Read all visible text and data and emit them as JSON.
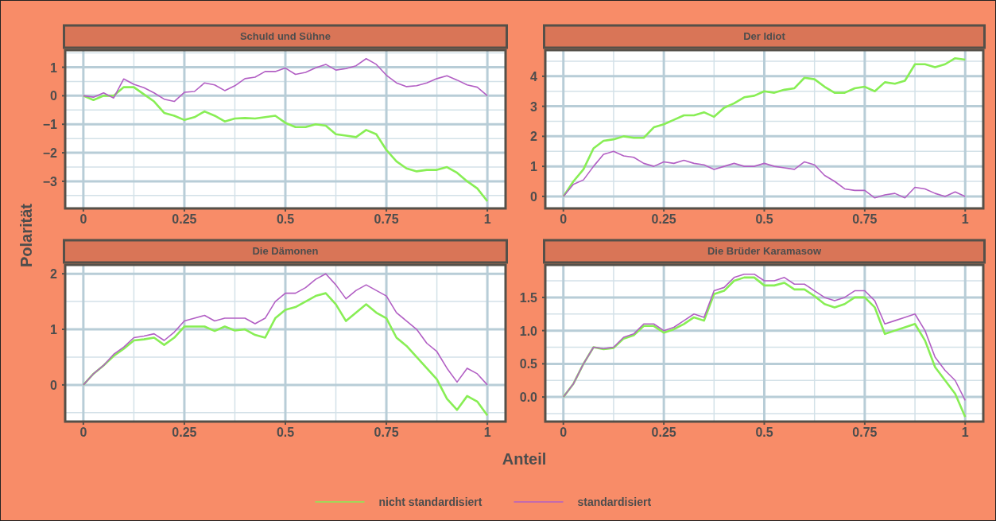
{
  "chart_data": [
    {
      "type": "line",
      "title": "Schuld und Sühne",
      "ylabel": "Polarität",
      "legend": "bottom",
      "x": [
        0,
        0.025,
        0.05,
        0.075,
        0.1,
        0.125,
        0.15,
        0.175,
        0.2,
        0.225,
        0.25,
        0.275,
        0.3,
        0.325,
        0.35,
        0.375,
        0.4,
        0.425,
        0.45,
        0.475,
        0.5,
        0.525,
        0.55,
        0.575,
        0.6,
        0.625,
        0.65,
        0.675,
        0.7,
        0.725,
        0.75,
        0.775,
        0.8,
        0.825,
        0.85,
        0.875,
        0.9,
        0.925,
        0.95,
        0.975,
        1
      ],
      "xlim": [
        -0.045,
        1.045
      ],
      "xticks": [
        0,
        0.25,
        0.5,
        0.75,
        1
      ],
      "ylim": [
        -3.95,
        1.6
      ],
      "yticks": [
        -3,
        -2,
        -1,
        0,
        1
      ],
      "grid": true,
      "series": [
        {
          "name": "nicht standardisiert",
          "color": "#88ee55",
          "values": [
            0,
            -0.15,
            0,
            0,
            0.3,
            0.3,
            0.05,
            -0.2,
            -0.6,
            -0.7,
            -0.85,
            -0.75,
            -0.55,
            -0.7,
            -0.9,
            -0.8,
            -0.78,
            -0.8,
            -0.75,
            -0.7,
            -0.95,
            -1.1,
            -1.1,
            -1,
            -1.05,
            -1.35,
            -1.4,
            -1.45,
            -1.2,
            -1.35,
            -1.9,
            -2.3,
            -2.55,
            -2.65,
            -2.6,
            -2.6,
            -2.5,
            -2.7,
            -3,
            -3.25,
            -3.7
          ]
        },
        {
          "name": "standardisiert",
          "color": "#b25fc4",
          "values": [
            0,
            -0.05,
            0.1,
            -0.08,
            0.59,
            0.4,
            0.28,
            0.1,
            -0.12,
            -0.2,
            0.12,
            0.15,
            0.45,
            0.38,
            0.18,
            0.35,
            0.6,
            0.65,
            0.85,
            0.85,
            0.97,
            0.75,
            0.82,
            0.98,
            1.1,
            0.9,
            0.95,
            1.05,
            1.3,
            1.1,
            0.72,
            0.45,
            0.32,
            0.35,
            0.45,
            0.6,
            0.7,
            0.55,
            0.38,
            0.3,
            0
          ]
        }
      ]
    },
    {
      "type": "line",
      "title": "Der Idiot",
      "x": [
        0,
        0.025,
        0.05,
        0.075,
        0.1,
        0.125,
        0.15,
        0.175,
        0.2,
        0.225,
        0.25,
        0.275,
        0.3,
        0.325,
        0.35,
        0.375,
        0.4,
        0.425,
        0.45,
        0.475,
        0.5,
        0.525,
        0.55,
        0.575,
        0.6,
        0.625,
        0.65,
        0.675,
        0.7,
        0.725,
        0.75,
        0.775,
        0.8,
        0.825,
        0.85,
        0.875,
        0.9,
        0.925,
        0.95,
        0.975,
        1
      ],
      "xlim": [
        -0.045,
        1.045
      ],
      "xticks": [
        0,
        0.25,
        0.5,
        0.75,
        1
      ],
      "ylim": [
        -0.4,
        4.87
      ],
      "yticks": [
        0,
        1,
        2,
        3,
        4
      ],
      "grid": true,
      "series": [
        {
          "color": "#88ee55",
          "values": [
            0,
            0.5,
            0.9,
            1.6,
            1.85,
            1.9,
            2,
            1.95,
            1.95,
            2.3,
            2.4,
            2.55,
            2.7,
            2.7,
            2.8,
            2.65,
            2.95,
            3.1,
            3.3,
            3.35,
            3.5,
            3.45,
            3.55,
            3.6,
            3.95,
            3.9,
            3.65,
            3.45,
            3.45,
            3.6,
            3.65,
            3.5,
            3.8,
            3.75,
            3.85,
            4.4,
            4.4,
            4.3,
            4.4,
            4.6,
            4.55
          ]
        },
        {
          "color": "#b25fc4",
          "values": [
            0,
            0.4,
            0.55,
            1,
            1.4,
            1.5,
            1.35,
            1.3,
            1.1,
            1,
            1.15,
            1.1,
            1.2,
            1.1,
            1.05,
            0.9,
            1,
            1.1,
            1,
            1,
            1.1,
            1,
            0.95,
            0.9,
            1.15,
            1.05,
            0.7,
            0.5,
            0.25,
            0.2,
            0.2,
            -0.05,
            0.05,
            0.1,
            -0.05,
            0.3,
            0.25,
            0.1,
            0,
            0.15,
            0
          ]
        }
      ]
    },
    {
      "type": "line",
      "title": "Die Dämonen",
      "xlabel": "Anteil",
      "x": [
        0,
        0.025,
        0.05,
        0.075,
        0.1,
        0.125,
        0.15,
        0.175,
        0.2,
        0.225,
        0.25,
        0.275,
        0.3,
        0.325,
        0.35,
        0.375,
        0.4,
        0.425,
        0.45,
        0.475,
        0.5,
        0.525,
        0.55,
        0.575,
        0.6,
        0.625,
        0.65,
        0.675,
        0.7,
        0.725,
        0.75,
        0.775,
        0.8,
        0.825,
        0.85,
        0.875,
        0.9,
        0.925,
        0.95,
        0.975,
        1
      ],
      "xlim": [
        -0.045,
        1.045
      ],
      "xticks": [
        0,
        0.25,
        0.5,
        0.75,
        1
      ],
      "ylim": [
        -0.66,
        2.16
      ],
      "yticks": [
        0,
        1,
        2
      ],
      "grid": true,
      "series": [
        {
          "color": "#88ee55",
          "values": [
            0,
            0.2,
            0.35,
            0.52,
            0.65,
            0.8,
            0.82,
            0.85,
            0.72,
            0.85,
            1.05,
            1.05,
            1.05,
            0.97,
            1.05,
            0.98,
            1,
            0.9,
            0.85,
            1.2,
            1.35,
            1.4,
            1.5,
            1.6,
            1.65,
            1.45,
            1.15,
            1.3,
            1.45,
            1.3,
            1.2,
            0.85,
            0.7,
            0.5,
            0.3,
            0.1,
            -0.25,
            -0.45,
            -0.2,
            -0.3,
            -0.55
          ]
        },
        {
          "color": "#b25fc4",
          "values": [
            0,
            0.2,
            0.35,
            0.55,
            0.68,
            0.85,
            0.88,
            0.92,
            0.8,
            0.95,
            1.15,
            1.2,
            1.25,
            1.15,
            1.2,
            1.2,
            1.2,
            1.1,
            1.2,
            1.5,
            1.65,
            1.65,
            1.75,
            1.9,
            2,
            1.8,
            1.55,
            1.7,
            1.8,
            1.7,
            1.6,
            1.3,
            1.15,
            1,
            0.75,
            0.6,
            0.3,
            0.05,
            0.3,
            0.2,
            0
          ]
        }
      ]
    },
    {
      "type": "line",
      "title": "Die Brüder Karamasow",
      "x": [
        0,
        0.025,
        0.05,
        0.075,
        0.1,
        0.125,
        0.15,
        0.175,
        0.2,
        0.225,
        0.25,
        0.275,
        0.3,
        0.325,
        0.35,
        0.375,
        0.4,
        0.425,
        0.45,
        0.475,
        0.5,
        0.525,
        0.55,
        0.575,
        0.6,
        0.625,
        0.65,
        0.675,
        0.7,
        0.725,
        0.75,
        0.775,
        0.8,
        0.825,
        0.85,
        0.875,
        0.9,
        0.925,
        0.95,
        0.975,
        1
      ],
      "xlim": [
        -0.045,
        1.045
      ],
      "xticks": [
        0,
        0.25,
        0.5,
        0.75,
        1
      ],
      "ylim": [
        -0.37,
        1.99
      ],
      "yticks": [
        {
          "value": 0,
          "label": "0.0"
        },
        {
          "value": 0.5,
          "label": "0.5"
        },
        {
          "value": 1,
          "label": "1.0"
        },
        {
          "value": 1.5,
          "label": "1.5"
        }
      ],
      "grid": true,
      "series": [
        {
          "color": "#88ee55",
          "values": [
            0,
            0.2,
            0.5,
            0.75,
            0.72,
            0.74,
            0.88,
            0.93,
            1.07,
            1.07,
            0.97,
            1.02,
            1.1,
            1.2,
            1.15,
            1.55,
            1.6,
            1.75,
            1.8,
            1.8,
            1.68,
            1.68,
            1.72,
            1.62,
            1.62,
            1.52,
            1.4,
            1.35,
            1.4,
            1.5,
            1.5,
            1.35,
            0.95,
            1,
            1.05,
            1.1,
            0.85,
            0.45,
            0.25,
            0.05,
            -0.3
          ]
        },
        {
          "color": "#b25fc4",
          "values": [
            0,
            0.2,
            0.5,
            0.75,
            0.73,
            0.75,
            0.9,
            0.95,
            1.1,
            1.1,
            1,
            1.05,
            1.15,
            1.25,
            1.2,
            1.6,
            1.65,
            1.8,
            1.85,
            1.85,
            1.75,
            1.75,
            1.8,
            1.7,
            1.7,
            1.6,
            1.5,
            1.45,
            1.5,
            1.6,
            1.6,
            1.45,
            1.1,
            1.15,
            1.2,
            1.25,
            1,
            0.6,
            0.4,
            0.25,
            -0.05
          ]
        }
      ]
    }
  ]
}
